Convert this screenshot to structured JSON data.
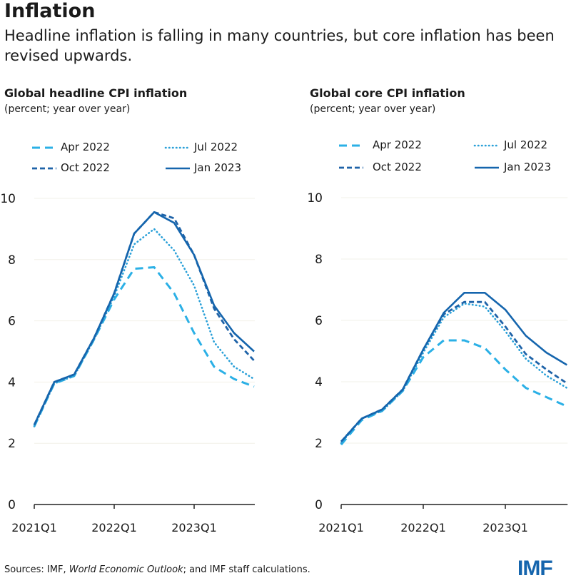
{
  "header": {
    "title": "Inflation",
    "subtitle": "Headline inflation is falling in many countries, but core inflation has been revised upwards."
  },
  "footer": {
    "source_prefix": "Sources: IMF, ",
    "source_italic": "World Economic Outlook",
    "source_suffix": "; and IMF staff calculations.",
    "logo": "IMF"
  },
  "series_styles": {
    "Apr 2022": {
      "color": "#2bb0e6",
      "dash": "long-dash"
    },
    "Jul 2022": {
      "color": "#2aa0d8",
      "dash": "dotted"
    },
    "Oct 2022": {
      "color": "#1f63a8",
      "dash": "short-dash"
    },
    "Jan 2023": {
      "color": "#1565ad",
      "dash": "solid"
    }
  },
  "chart_data": [
    {
      "type": "line",
      "title": "Global headline CPI inflation",
      "subtitle": "(percent; year over year)",
      "x": [
        "2021Q1",
        "2021Q2",
        "2021Q3",
        "2021Q4",
        "2022Q1",
        "2022Q2",
        "2022Q3",
        "2022Q4",
        "2023Q1",
        "2023Q2",
        "2023Q3",
        "2023Q4"
      ],
      "xtick_labels": [
        "2021Q1",
        "2022Q1",
        "2023Q1"
      ],
      "yticks": [
        0,
        2,
        4,
        6,
        8,
        10
      ],
      "ylim": [
        0,
        10
      ],
      "grid": true,
      "legend": "top",
      "series": [
        {
          "name": "Apr 2022",
          "values": [
            2.55,
            3.95,
            4.2,
            5.4,
            6.7,
            7.7,
            7.75,
            6.9,
            5.6,
            4.5,
            4.1,
            3.85
          ]
        },
        {
          "name": "Jul 2022",
          "values": [
            2.55,
            3.95,
            4.2,
            5.4,
            6.8,
            8.5,
            9.0,
            8.3,
            7.15,
            5.3,
            4.5,
            4.1
          ]
        },
        {
          "name": "Oct 2022",
          "values": [
            2.6,
            4.0,
            4.25,
            5.45,
            6.9,
            8.85,
            9.55,
            9.35,
            8.15,
            6.4,
            5.4,
            4.7
          ]
        },
        {
          "name": "Jan 2023",
          "values": [
            2.6,
            4.0,
            4.25,
            5.45,
            6.9,
            8.85,
            9.55,
            9.2,
            8.15,
            6.5,
            5.6,
            5.0
          ]
        }
      ]
    },
    {
      "type": "line",
      "title": "Global core CPI inflation",
      "subtitle": "(percent; year over year)",
      "x": [
        "2021Q1",
        "2021Q2",
        "2021Q3",
        "2021Q4",
        "2022Q1",
        "2022Q2",
        "2022Q3",
        "2022Q4",
        "2023Q1",
        "2023Q2",
        "2023Q3",
        "2023Q4"
      ],
      "xtick_labels": [
        "2021Q1",
        "2022Q1",
        "2023Q1"
      ],
      "yticks": [
        0,
        2,
        4,
        6,
        8,
        10
      ],
      "ylim": [
        0,
        10
      ],
      "grid": true,
      "legend": "top",
      "series": [
        {
          "name": "Apr 2022",
          "values": [
            1.95,
            2.75,
            3.05,
            3.7,
            4.8,
            5.35,
            5.35,
            5.1,
            4.4,
            3.8,
            3.5,
            3.2
          ]
        },
        {
          "name": "Jul 2022",
          "values": [
            2.0,
            2.8,
            3.05,
            3.7,
            4.95,
            6.1,
            6.55,
            6.45,
            5.65,
            4.75,
            4.2,
            3.8
          ]
        },
        {
          "name": "Oct 2022",
          "values": [
            2.05,
            2.8,
            3.1,
            3.75,
            5.05,
            6.2,
            6.6,
            6.6,
            5.8,
            4.9,
            4.4,
            3.95
          ]
        },
        {
          "name": "Jan 2023",
          "values": [
            2.05,
            2.8,
            3.1,
            3.75,
            5.05,
            6.25,
            6.9,
            6.9,
            6.35,
            5.5,
            4.95,
            4.55
          ]
        }
      ]
    }
  ]
}
